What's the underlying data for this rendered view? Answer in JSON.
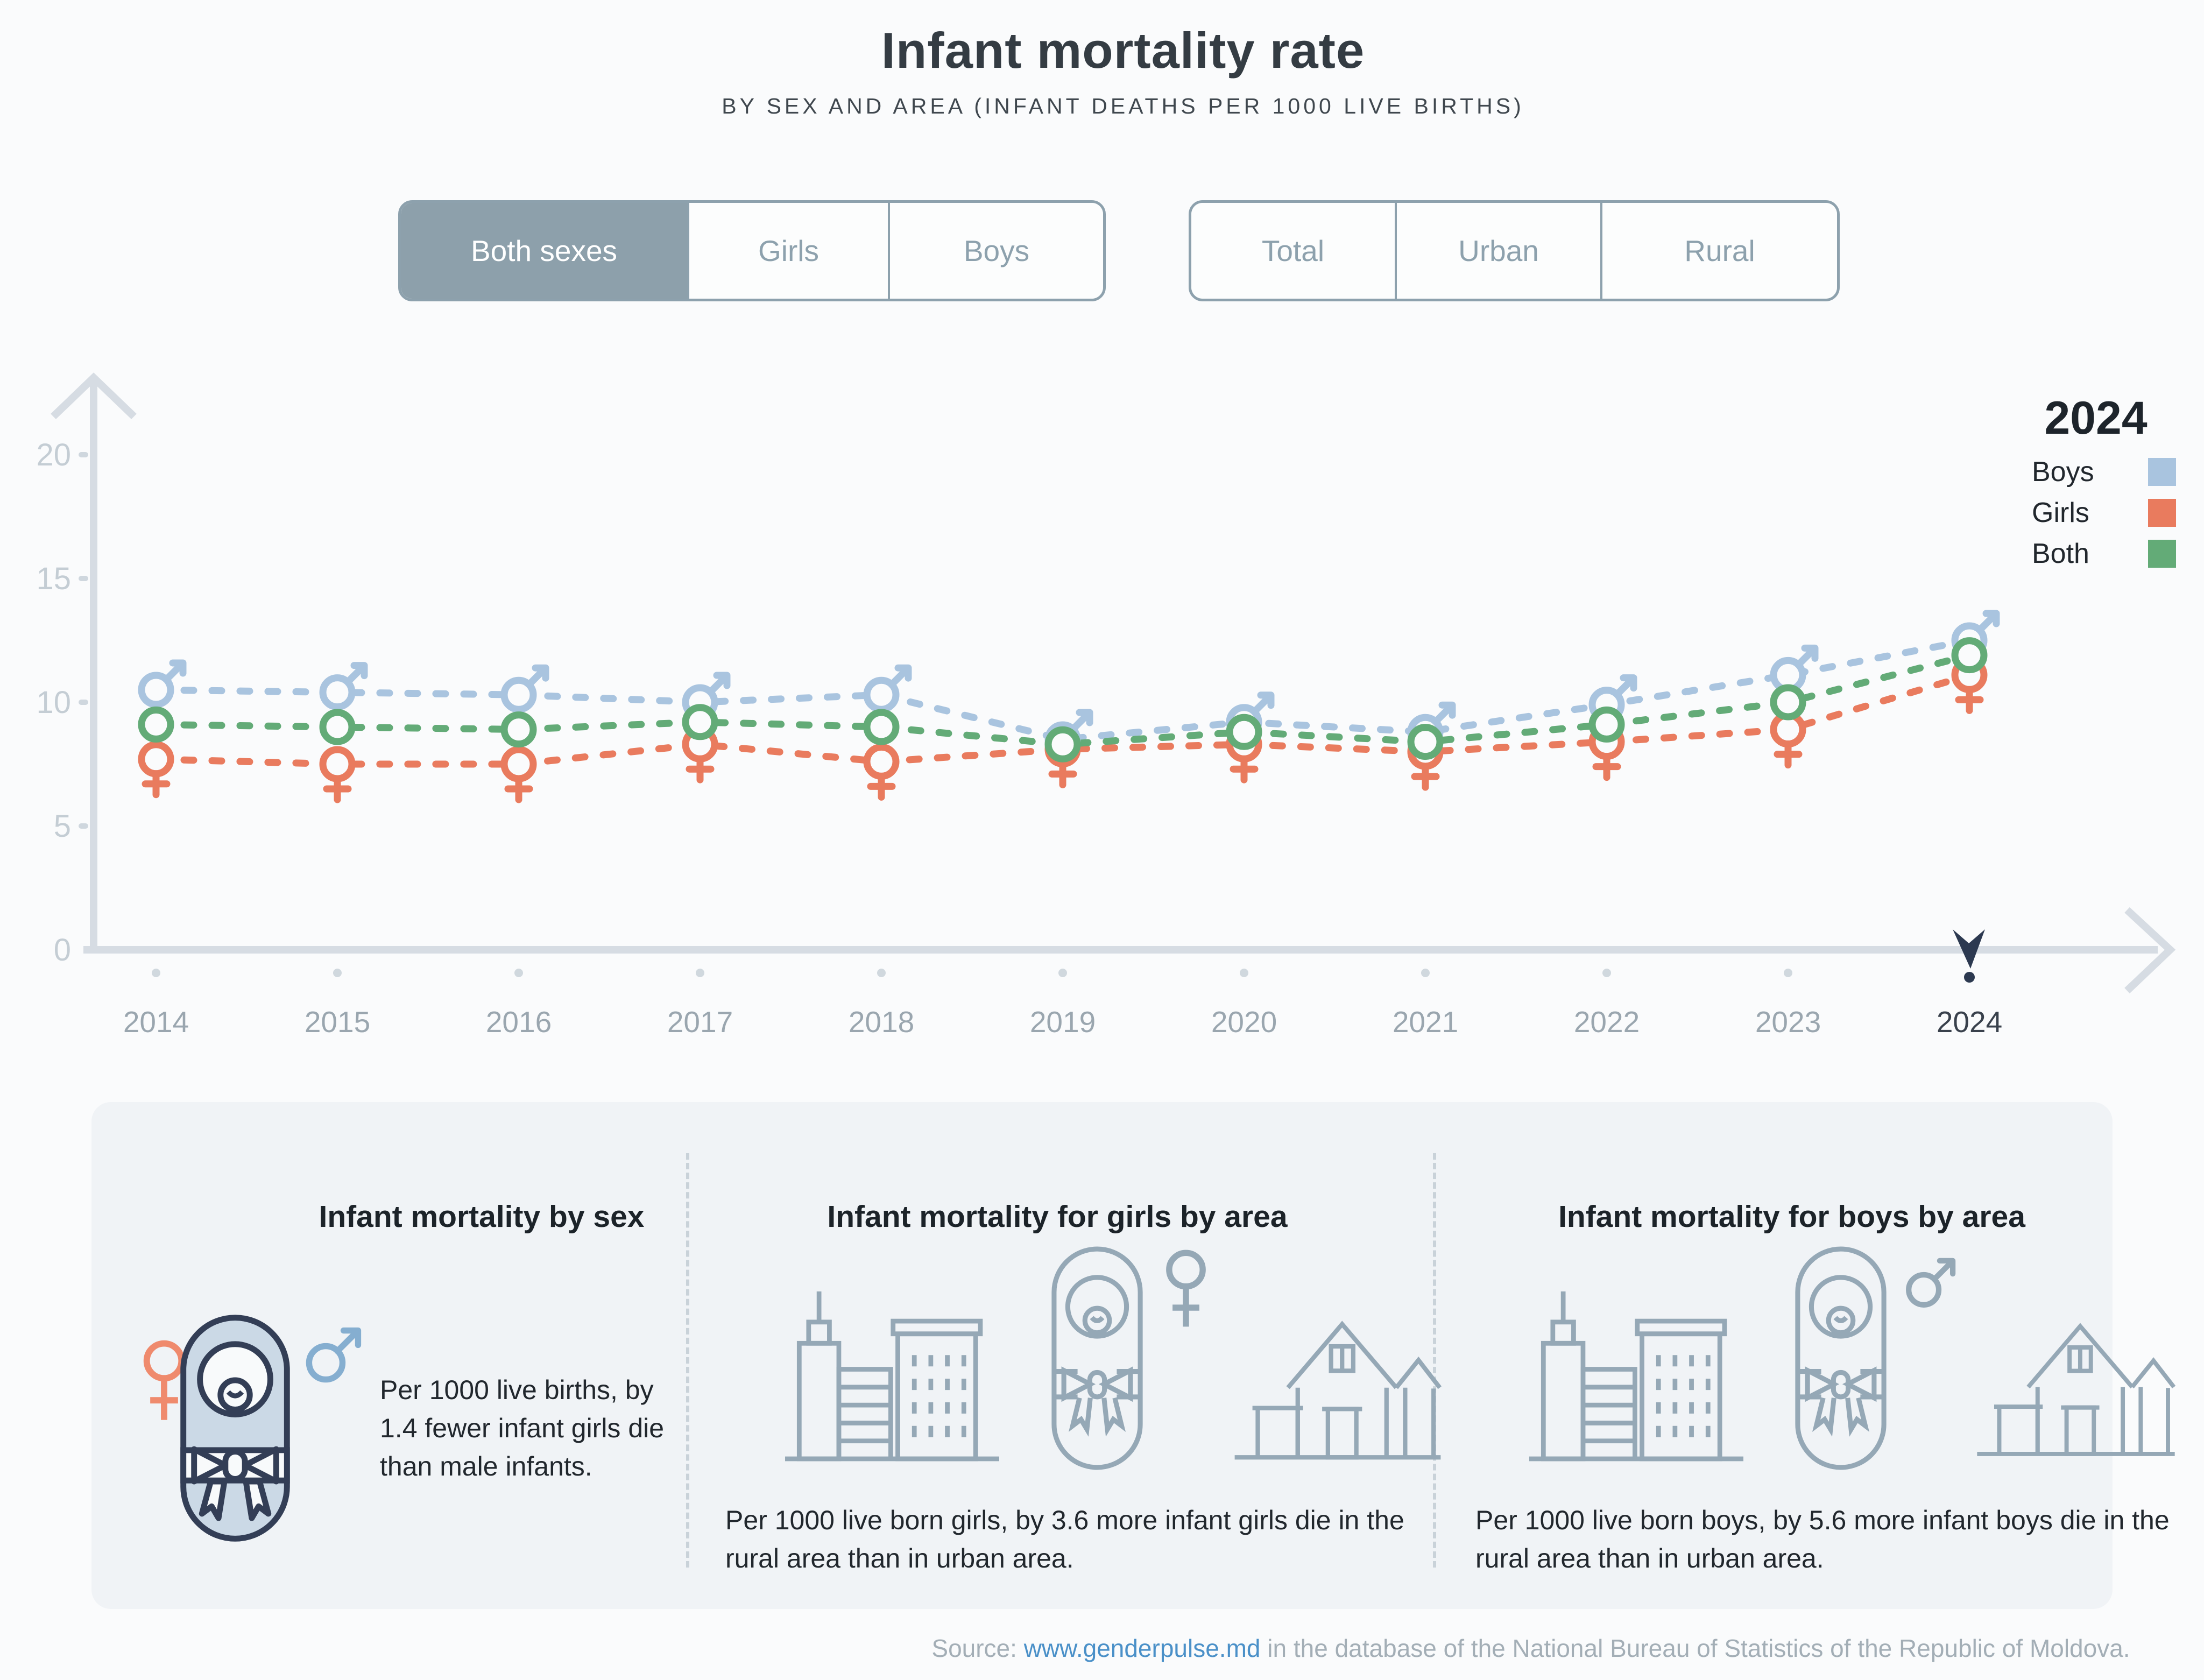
{
  "header": {
    "title": "Infant mortality rate",
    "subtitle": "BY SEX AND AREA (INFANT DEATHS PER 1000 LIVE BIRTHS)"
  },
  "controls": {
    "sex_group": {
      "options": [
        {
          "label": "Both sexes",
          "selected": true
        },
        {
          "label": "Girls",
          "selected": false
        },
        {
          "label": "Boys",
          "selected": false
        }
      ]
    },
    "area_group": {
      "options": [
        {
          "label": "Total",
          "selected": false
        },
        {
          "label": "Urban",
          "selected": false
        },
        {
          "label": "Rural",
          "selected": false
        }
      ]
    }
  },
  "chart_data": {
    "type": "line",
    "title": "Infant mortality rate by sex (infant deaths per 1000 live births)",
    "categories": [
      "2014",
      "2015",
      "2016",
      "2017",
      "2018",
      "2019",
      "2020",
      "2021",
      "2022",
      "2023",
      "2024"
    ],
    "highlight_category": "2024",
    "series": [
      {
        "name": "Boys",
        "symbol": "male",
        "color": "#a9c4df",
        "values": [
          10.5,
          10.4,
          10.3,
          10.0,
          10.3,
          8.5,
          9.2,
          8.8,
          9.9,
          11.1,
          12.5
        ]
      },
      {
        "name": "Girls",
        "symbol": "female",
        "color": "#e97b5e",
        "values": [
          7.7,
          7.5,
          7.5,
          8.3,
          7.6,
          8.1,
          8.3,
          8.0,
          8.4,
          8.9,
          11.1
        ]
      },
      {
        "name": "Both",
        "symbol": "circle",
        "color": "#63ab77",
        "values": [
          9.1,
          9.0,
          8.9,
          9.2,
          9.0,
          8.3,
          8.8,
          8.4,
          9.1,
          10.0,
          11.9
        ]
      }
    ],
    "yticks": [
      0,
      5,
      10,
      15,
      20
    ],
    "ylim": [
      0,
      22
    ],
    "grid": false,
    "legend_position": "top-right",
    "line_style": "dashed"
  },
  "legend": {
    "title": "2024",
    "items": [
      {
        "label": "Boys",
        "color": "#a9c4df"
      },
      {
        "label": "Girls",
        "color": "#e97b5e"
      },
      {
        "label": "Both",
        "color": "#63ab77"
      }
    ]
  },
  "cards": [
    {
      "title": "Infant mortality by sex",
      "text": "Per 1000 live births, by 1.4 fewer infant girls die than male infants.",
      "icons": [
        "female-icon",
        "swaddled-baby-icon",
        "male-icon"
      ]
    },
    {
      "title": "Infant mortality for girls by area",
      "text": "Per 1000 live born girls, by 3.6 more infant girls die in the rural area than in urban area.",
      "icons": [
        "city-buildings-icon",
        "swaddled-baby-icon",
        "female-icon",
        "rural-house-icon"
      ]
    },
    {
      "title": "Infant mortality for boys by area",
      "text": "Per 1000 live born boys, by 5.6 more infant boys die in the rural area than in urban area.",
      "icons": [
        "city-buildings-icon",
        "swaddled-baby-icon",
        "male-icon",
        "rural-house-icon"
      ]
    }
  ],
  "footer": {
    "prefix": "Source:",
    "link": "www.genderpulse.md",
    "suffix": "in the database of the National Bureau of Statistics of the Republic of Moldova."
  },
  "colors": {
    "background": "#fafbfc",
    "card_background": "#f0f3f6",
    "axis": "#d6dce3",
    "tick_label": "#c4cdd4",
    "year_label": "#9aa6af",
    "year_label_active": "#39414c",
    "marker": "#2c3950",
    "control_border": "#8da1ad",
    "control_selected_bg": "#8da0ab",
    "boys": "#a9c4df",
    "girls": "#e97b5e",
    "both": "#63ab77",
    "link": "#4a90c8",
    "icon_outline": "#95a8b6",
    "baby_fill": "#cbd9e6",
    "baby_outline": "#333e56"
  }
}
